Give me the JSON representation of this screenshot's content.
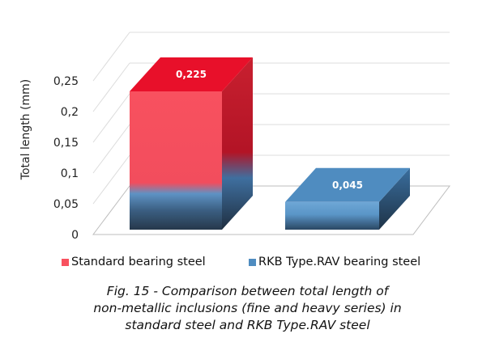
{
  "chart_data": {
    "type": "bar",
    "categories": [
      "Standard bearing steel",
      "RKB Type.RAV bearing steel"
    ],
    "values": [
      0.225,
      0.045
    ],
    "data_labels": [
      "0,225",
      "0,045"
    ],
    "ylabel": "Total length (mm)",
    "xlabel": "",
    "ylim": [
      0,
      0.25
    ],
    "yticks": [
      {
        "value": 0,
        "label": "0"
      },
      {
        "value": 0.05,
        "label": "0,05"
      },
      {
        "value": 0.1,
        "label": "0,1"
      },
      {
        "value": 0.15,
        "label": "0,15"
      },
      {
        "value": 0.2,
        "label": "0,2"
      },
      {
        "value": 0.25,
        "label": "0,25"
      }
    ],
    "grid": true,
    "legend": "bottom",
    "colors": {
      "standard": "#e8102a",
      "standard_light": "#f8515f",
      "standard_side": "#b31426",
      "rkb": "#4f8cc0",
      "rkb_light": "#6ea7d6",
      "rkb_side": "#2c5d8a",
      "rkb_dark": "#26384b"
    }
  },
  "legend_items": [
    {
      "label": "Standard bearing steel"
    },
    {
      "label": "RKB Type.RAV bearing steel"
    }
  ],
  "caption": {
    "line1": "Fig. 15 - Comparison between total length of",
    "line2": "non-metallic inclusions (fine and heavy series) in",
    "line3": "standard steel and RKB Type.RAV steel"
  }
}
